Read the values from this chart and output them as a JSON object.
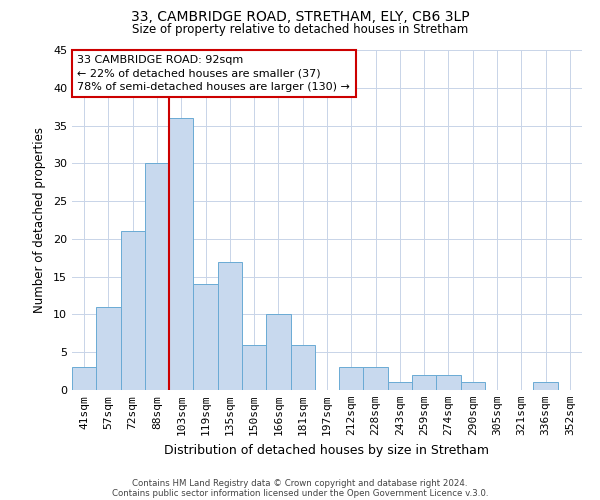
{
  "title": "33, CAMBRIDGE ROAD, STRETHAM, ELY, CB6 3LP",
  "subtitle": "Size of property relative to detached houses in Stretham",
  "xlabel": "Distribution of detached houses by size in Stretham",
  "ylabel": "Number of detached properties",
  "bin_labels": [
    "41sqm",
    "57sqm",
    "72sqm",
    "88sqm",
    "103sqm",
    "119sqm",
    "135sqm",
    "150sqm",
    "166sqm",
    "181sqm",
    "197sqm",
    "212sqm",
    "228sqm",
    "243sqm",
    "259sqm",
    "274sqm",
    "290sqm",
    "305sqm",
    "321sqm",
    "336sqm",
    "352sqm"
  ],
  "bar_values": [
    3,
    11,
    21,
    30,
    36,
    14,
    17,
    6,
    10,
    6,
    0,
    3,
    3,
    1,
    2,
    2,
    1,
    0,
    0,
    1,
    0
  ],
  "bar_color": "#c8d9ee",
  "bar_edge_color": "#6aaad4",
  "vline_x": 3.5,
  "vline_color": "#cc0000",
  "ylim": [
    0,
    45
  ],
  "yticks": [
    0,
    5,
    10,
    15,
    20,
    25,
    30,
    35,
    40,
    45
  ],
  "annotation_title": "33 CAMBRIDGE ROAD: 92sqm",
  "annotation_line1": "← 22% of detached houses are smaller (37)",
  "annotation_line2": "78% of semi-detached houses are larger (130) →",
  "annotation_box_color": "#ffffff",
  "annotation_box_edge": "#cc0000",
  "footer1": "Contains HM Land Registry data © Crown copyright and database right 2024.",
  "footer2": "Contains public sector information licensed under the Open Government Licence v.3.0.",
  "background_color": "#ffffff",
  "grid_color": "#c8d4e8"
}
